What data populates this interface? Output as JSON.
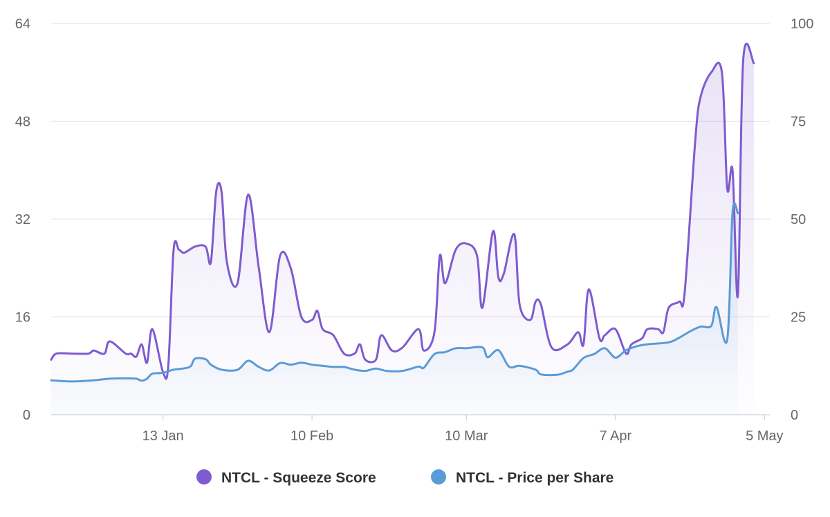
{
  "chart_data": {
    "type": "area",
    "x_start": "2019-12-23",
    "x_end": "2020-05-06",
    "x_ticks": [
      {
        "date": "2020-01-13",
        "label": "13 Jan"
      },
      {
        "date": "2020-02-10",
        "label": "10 Feb"
      },
      {
        "date": "2020-03-10",
        "label": "10 Mar"
      },
      {
        "date": "2020-04-07",
        "label": "7 Apr"
      },
      {
        "date": "2020-05-05",
        "label": "5 May"
      }
    ],
    "y_left": {
      "range": [
        0,
        64
      ],
      "ticks": [
        0,
        16,
        32,
        48,
        64
      ]
    },
    "y_right": {
      "range": [
        0,
        100
      ],
      "ticks": [
        0,
        25,
        50,
        75,
        100
      ]
    },
    "grid": true,
    "legend_position": "bottom",
    "series": [
      {
        "name": "NTCL - Squeeze Score",
        "axis": "left",
        "color": "#7e5bcf",
        "points": [
          [
            "2019-12-23",
            9
          ],
          [
            "2019-12-24",
            10
          ],
          [
            "2019-12-27",
            10
          ],
          [
            "2019-12-30",
            10
          ],
          [
            "2019-12-31",
            10.5
          ],
          [
            "2020-01-02",
            10
          ],
          [
            "2020-01-03",
            12
          ],
          [
            "2020-01-06",
            10
          ],
          [
            "2020-01-07",
            10
          ],
          [
            "2020-01-08",
            9.5
          ],
          [
            "2020-01-09",
            11.5
          ],
          [
            "2020-01-10",
            8.5
          ],
          [
            "2020-01-11",
            14
          ],
          [
            "2020-01-13",
            7
          ],
          [
            "2020-01-14",
            8
          ],
          [
            "2020-01-15",
            27
          ],
          [
            "2020-01-16",
            27
          ],
          [
            "2020-01-17",
            26.5
          ],
          [
            "2020-01-19",
            27.5
          ],
          [
            "2020-01-21",
            27.5
          ],
          [
            "2020-01-22",
            25
          ],
          [
            "2020-01-23",
            36.5
          ],
          [
            "2020-01-24",
            36.5
          ],
          [
            "2020-01-25",
            25
          ],
          [
            "2020-01-27",
            21.5
          ],
          [
            "2020-01-29",
            36
          ],
          [
            "2020-01-31",
            24
          ],
          [
            "2020-02-02",
            13.5
          ],
          [
            "2020-02-04",
            26
          ],
          [
            "2020-02-06",
            24
          ],
          [
            "2020-02-08",
            16
          ],
          [
            "2020-02-10",
            15.5
          ],
          [
            "2020-02-11",
            17
          ],
          [
            "2020-02-12",
            14
          ],
          [
            "2020-02-14",
            13
          ],
          [
            "2020-02-16",
            10
          ],
          [
            "2020-02-18",
            10
          ],
          [
            "2020-02-19",
            11.5
          ],
          [
            "2020-02-20",
            9
          ],
          [
            "2020-02-22",
            9
          ],
          [
            "2020-02-23",
            13
          ],
          [
            "2020-02-25",
            10.5
          ],
          [
            "2020-02-27",
            11
          ],
          [
            "2020-03-01",
            14
          ],
          [
            "2020-03-02",
            10.5
          ],
          [
            "2020-03-04",
            13.5
          ],
          [
            "2020-03-05",
            26
          ],
          [
            "2020-03-06",
            21.5
          ],
          [
            "2020-03-08",
            27
          ],
          [
            "2020-03-10",
            28
          ],
          [
            "2020-03-12",
            26
          ],
          [
            "2020-03-13",
            17.5
          ],
          [
            "2020-03-15",
            30
          ],
          [
            "2020-03-16",
            22.5
          ],
          [
            "2020-03-17",
            23
          ],
          [
            "2020-03-19",
            29.5
          ],
          [
            "2020-03-20",
            18
          ],
          [
            "2020-03-22",
            15.5
          ],
          [
            "2020-03-23",
            18.5
          ],
          [
            "2020-03-24",
            18
          ],
          [
            "2020-03-26",
            11
          ],
          [
            "2020-03-29",
            11.5
          ],
          [
            "2020-03-31",
            13.5
          ],
          [
            "2020-04-01",
            11.5
          ],
          [
            "2020-04-02",
            20.5
          ],
          [
            "2020-04-04",
            12.5
          ],
          [
            "2020-04-05",
            13
          ],
          [
            "2020-04-07",
            14
          ],
          [
            "2020-04-09",
            10
          ],
          [
            "2020-04-10",
            11.5
          ],
          [
            "2020-04-12",
            12.5
          ],
          [
            "2020-04-13",
            14
          ],
          [
            "2020-04-15",
            14
          ],
          [
            "2020-04-16",
            13.5
          ],
          [
            "2020-04-17",
            17.5
          ],
          [
            "2020-04-19",
            18.5
          ],
          [
            "2020-04-20",
            20
          ],
          [
            "2020-04-22",
            45
          ],
          [
            "2020-04-23",
            52
          ],
          [
            "2020-04-25",
            56
          ],
          [
            "2020-04-27",
            56
          ],
          [
            "2020-04-28",
            37
          ],
          [
            "2020-04-29",
            40
          ],
          [
            "2020-04-30",
            19.5
          ],
          [
            "2020-05-01",
            58
          ],
          [
            "2020-05-03",
            57.5
          ]
        ]
      },
      {
        "name": "NTCL - Price per Share",
        "axis": "right",
        "color": "#5b9bd5",
        "points": [
          [
            "2019-12-23",
            8.8
          ],
          [
            "2019-12-27",
            8.5
          ],
          [
            "2019-12-31",
            8.8
          ],
          [
            "2020-01-03",
            9.2
          ],
          [
            "2020-01-06",
            9.3
          ],
          [
            "2020-01-08",
            9.2
          ],
          [
            "2020-01-09",
            8.7
          ],
          [
            "2020-01-10",
            9.2
          ],
          [
            "2020-01-11",
            10.5
          ],
          [
            "2020-01-13",
            10.7
          ],
          [
            "2020-01-15",
            11.5
          ],
          [
            "2020-01-18",
            12.2
          ],
          [
            "2020-01-19",
            14.3
          ],
          [
            "2020-01-21",
            14.2
          ],
          [
            "2020-01-22",
            12.8
          ],
          [
            "2020-01-24",
            11.5
          ],
          [
            "2020-01-27",
            11.5
          ],
          [
            "2020-01-29",
            13.8
          ],
          [
            "2020-01-31",
            12.2
          ],
          [
            "2020-02-02",
            11.3
          ],
          [
            "2020-02-04",
            13.2
          ],
          [
            "2020-02-06",
            12.8
          ],
          [
            "2020-02-08",
            13.3
          ],
          [
            "2020-02-10",
            12.8
          ],
          [
            "2020-02-12",
            12.5
          ],
          [
            "2020-02-14",
            12.2
          ],
          [
            "2020-02-16",
            12.2
          ],
          [
            "2020-02-18",
            11.5
          ],
          [
            "2020-02-20",
            11.2
          ],
          [
            "2020-02-22",
            11.8
          ],
          [
            "2020-02-24",
            11.2
          ],
          [
            "2020-02-27",
            11.2
          ],
          [
            "2020-03-01",
            12.3
          ],
          [
            "2020-03-02",
            12
          ],
          [
            "2020-03-04",
            15.5
          ],
          [
            "2020-03-06",
            16
          ],
          [
            "2020-03-08",
            17
          ],
          [
            "2020-03-10",
            17
          ],
          [
            "2020-03-13",
            17.2
          ],
          [
            "2020-03-14",
            14.7
          ],
          [
            "2020-03-16",
            16.5
          ],
          [
            "2020-03-18",
            12.3
          ],
          [
            "2020-03-20",
            12.5
          ],
          [
            "2020-03-23",
            11.5
          ],
          [
            "2020-03-24",
            10.3
          ],
          [
            "2020-03-27",
            10.2
          ],
          [
            "2020-03-29",
            11
          ],
          [
            "2020-03-30",
            11.5
          ],
          [
            "2020-04-01",
            14.5
          ],
          [
            "2020-04-03",
            15.5
          ],
          [
            "2020-04-05",
            17
          ],
          [
            "2020-04-07",
            14.6
          ],
          [
            "2020-04-09",
            16.5
          ],
          [
            "2020-04-11",
            17.5
          ],
          [
            "2020-04-13",
            18
          ],
          [
            "2020-04-17",
            18.5
          ],
          [
            "2020-04-19",
            19.7
          ],
          [
            "2020-04-21",
            21.3
          ],
          [
            "2020-04-23",
            22.5
          ],
          [
            "2020-04-25",
            22.7
          ],
          [
            "2020-04-26",
            27.5
          ],
          [
            "2020-04-28",
            19.2
          ],
          [
            "2020-04-29",
            51.7
          ],
          [
            "2020-04-30",
            51.5
          ]
        ]
      }
    ]
  }
}
